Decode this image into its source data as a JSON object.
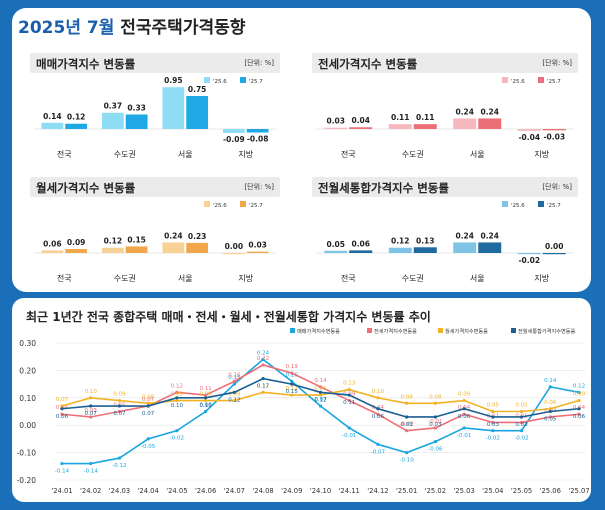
{
  "title_year_month": "2025년 7월",
  "title_rest": "전국주택가격동향",
  "unit": "[단위: %]",
  "panels": [
    {
      "title": "매매가격지수 변동률",
      "legend": [
        "'25.6",
        "'25.7"
      ],
      "colors": [
        "#8fdcf5",
        "#1fa8e6"
      ],
      "categories": [
        "전국",
        "수도권",
        "서울",
        "지방"
      ],
      "prev": [
        0.14,
        0.37,
        0.95,
        -0.09
      ],
      "curr": [
        0.12,
        0.33,
        0.75,
        -0.08
      ],
      "ymin": -0.12,
      "ymax": 1.0
    },
    {
      "title": "전세가격지수 변동률",
      "legend": [
        "'25.6",
        "'25.7"
      ],
      "colors": [
        "#f7b7bf",
        "#ea6f77"
      ],
      "categories": [
        "전국",
        "수도권",
        "서울",
        "지방"
      ],
      "prev": [
        0.03,
        0.11,
        0.24,
        -0.04
      ],
      "curr": [
        0.04,
        0.11,
        0.24,
        -0.03
      ],
      "ymin": -0.12,
      "ymax": 1.0
    },
    {
      "title": "월세가격지수 변동률",
      "legend": [
        "'25.6",
        "'25.7"
      ],
      "colors": [
        "#f8d197",
        "#f2a84a"
      ],
      "categories": [
        "전국",
        "수도권",
        "서울",
        "지방"
      ],
      "prev": [
        0.06,
        0.12,
        0.24,
        0.0
      ],
      "curr": [
        0.09,
        0.15,
        0.23,
        0.03
      ],
      "ymin": -0.12,
      "ymax": 1.0
    },
    {
      "title": "전월세통합가격지수 변동률",
      "legend": [
        "'25.6",
        "'25.7"
      ],
      "colors": [
        "#7fc4e6",
        "#1f6a9e"
      ],
      "categories": [
        "전국",
        "수도권",
        "서울",
        "지방"
      ],
      "prev": [
        0.05,
        0.12,
        0.24,
        -0.02
      ],
      "curr": [
        0.06,
        0.13,
        0.24,
        0.0
      ],
      "ymin": -0.12,
      "ymax": 1.0
    }
  ],
  "line_title": "최근 1년간 전국 종합주택 매매・전세・월세・전월세통합 가격지수 변동률 추이",
  "chart_data": {
    "type": "line",
    "x": [
      "'24.01",
      "'24.02",
      "'24.03",
      "'24.04",
      "'24.05",
      "'24.06",
      "'24.07",
      "'24.08",
      "'24.09",
      "'24.10",
      "'24.11",
      "'24.12",
      "'25.01",
      "'25.02",
      "'25.03",
      "'25.04",
      "'25.05",
      "'25.06",
      "'25.07"
    ],
    "ylim": [
      -0.2,
      0.3
    ],
    "yticks": [
      "0.30",
      "0.20",
      "0.10",
      "0.00",
      "-0.10",
      "-0.20"
    ],
    "series": [
      {
        "name": "매매가격지수변동률",
        "color": "#1aa6e0",
        "values": [
          -0.14,
          -0.14,
          -0.12,
          -0.05,
          -0.02,
          0.05,
          0.15,
          0.24,
          0.16,
          0.07,
          -0.01,
          -0.07,
          -0.1,
          -0.06,
          -0.01,
          -0.02,
          -0.02,
          0.14,
          0.12
        ]
      },
      {
        "name": "전세가격지수변동률",
        "color": "#ee6f77",
        "values": [
          0.04,
          0.03,
          0.05,
          0.07,
          0.12,
          0.11,
          0.16,
          0.22,
          0.19,
          0.14,
          0.09,
          0.04,
          -0.02,
          -0.01,
          0.04,
          0.01,
          0.01,
          0.03,
          0.04
        ]
      },
      {
        "name": "월세가격지수변동률",
        "color": "#f1b325",
        "values": [
          0.07,
          0.1,
          0.09,
          0.08,
          0.09,
          0.09,
          0.09,
          0.12,
          0.11,
          0.11,
          0.13,
          0.1,
          0.08,
          0.08,
          0.09,
          0.05,
          0.05,
          0.06,
          0.09
        ]
      },
      {
        "name": "전월세통합가격지수변동률",
        "color": "#1b5f93",
        "values": [
          0.06,
          0.07,
          0.07,
          0.07,
          0.1,
          0.1,
          0.12,
          0.17,
          0.15,
          0.12,
          0.11,
          0.06,
          0.03,
          0.03,
          0.06,
          0.03,
          0.03,
          0.05,
          0.06
        ]
      }
    ]
  }
}
